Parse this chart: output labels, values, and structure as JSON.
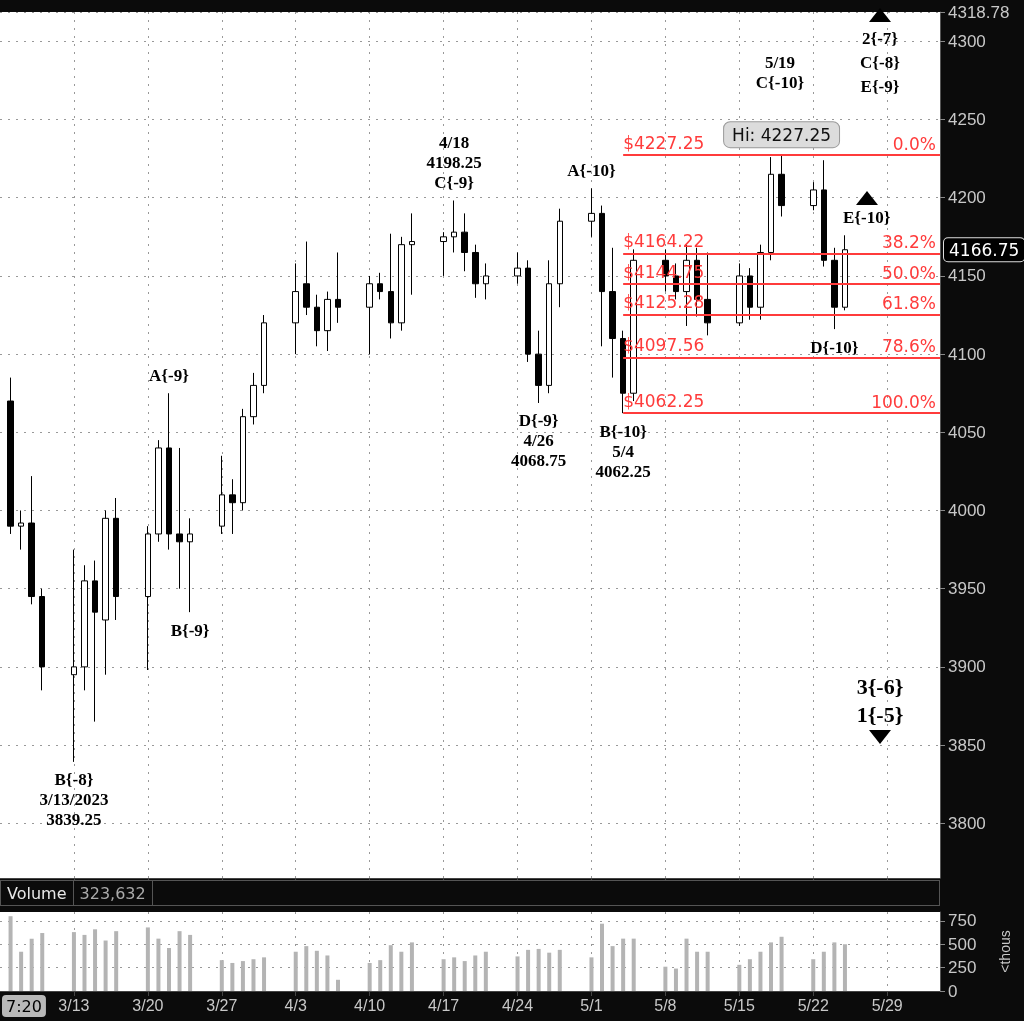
{
  "chart_data": [
    {
      "type": "candlestick",
      "color": "#000000",
      "x": [
        "--03-07",
        "--03-08",
        "--03-09",
        "--03-10",
        "--03-13",
        "--03-14",
        "--03-15",
        "--03-16",
        "--03-17",
        "--03-20",
        "--03-21",
        "--03-22",
        "--03-23",
        "--03-24",
        "--03-27",
        "--03-28",
        "--03-29",
        "--03-30",
        "--03-31",
        "--04-03",
        "--04-04",
        "--04-05",
        "--04-06",
        "--04-07",
        "--04-10",
        "--04-11",
        "--04-12",
        "--04-13",
        "--04-14",
        "--04-17",
        "--04-18",
        "--04-19",
        "--04-20",
        "--04-21",
        "--04-24",
        "--04-25",
        "--04-26",
        "--04-27",
        "--04-28",
        "--05-01",
        "--05-02",
        "--05-03",
        "--05-04",
        "--05-05",
        "--05-08",
        "--05-09",
        "--05-10",
        "--05-11",
        "--05-12",
        "--05-15",
        "--05-16",
        "--05-17",
        "--05-18",
        "--05-19",
        "--05-22",
        "--05-23",
        "--05-24",
        "--05-25"
      ],
      "ohlc": [
        [
          4070,
          4085,
          3985,
          3990
        ],
        [
          3990,
          4000,
          3975,
          3992
        ],
        [
          3992,
          4022,
          3940,
          3945
        ],
        [
          3945,
          3950,
          3885,
          3900
        ],
        [
          3895,
          3975,
          3839.25,
          3900
        ],
        [
          3900,
          3965,
          3885,
          3955
        ],
        [
          3955,
          3968,
          3865,
          3935
        ],
        [
          3930,
          4000,
          3895,
          3995
        ],
        [
          3995,
          4008,
          3930,
          3945
        ],
        [
          3945,
          3990,
          3898,
          3985
        ],
        [
          3985,
          4045,
          3980,
          4040
        ],
        [
          4040,
          4075,
          3975,
          3985
        ],
        [
          3985,
          4040,
          3950,
          3980
        ],
        [
          3980,
          3995,
          3935,
          3985
        ],
        [
          3990,
          4035,
          3985,
          4010
        ],
        [
          4010,
          4020,
          3985,
          4005
        ],
        [
          4005,
          4065,
          4000,
          4060
        ],
        [
          4060,
          4088,
          4055,
          4080
        ],
        [
          4080,
          4125,
          4075,
          4120
        ],
        [
          4120,
          4158,
          4100,
          4140
        ],
        [
          4145,
          4172,
          4125,
          4130
        ],
        [
          4130,
          4138,
          4105,
          4115
        ],
        [
          4115,
          4140,
          4102,
          4135
        ],
        [
          4135,
          4165,
          4120,
          4130
        ],
        [
          4130,
          4150,
          4100,
          4145
        ],
        [
          4145,
          4152,
          4135,
          4140
        ],
        [
          4140,
          4177,
          4110,
          4120
        ],
        [
          4120,
          4175,
          4115,
          4170
        ],
        [
          4170,
          4190,
          4138,
          4172
        ],
        [
          4172,
          4178,
          4150,
          4175
        ],
        [
          4175,
          4198.25,
          4165,
          4178
        ],
        [
          4178,
          4190,
          4153,
          4165
        ],
        [
          4165,
          4170,
          4136,
          4145
        ],
        [
          4145,
          4158,
          4135,
          4150
        ],
        [
          4150,
          4165,
          4145,
          4155
        ],
        [
          4155,
          4160,
          4095,
          4100
        ],
        [
          4100,
          4115,
          4068.75,
          4080
        ],
        [
          4080,
          4160,
          4075,
          4145
        ],
        [
          4145,
          4193,
          4130,
          4185
        ],
        [
          4185,
          4206,
          4175,
          4190
        ],
        [
          4190,
          4195,
          4105,
          4140
        ],
        [
          4140,
          4168,
          4085,
          4110
        ],
        [
          4110,
          4115,
          4062.25,
          4075
        ],
        [
          4075,
          4167,
          4070,
          4160
        ],
        [
          4160,
          4167,
          4140,
          4150
        ],
        [
          4150,
          4158,
          4135,
          4140
        ],
        [
          4140,
          4170,
          4118,
          4160
        ],
        [
          4160,
          4168,
          4124,
          4135
        ],
        [
          4135,
          4165,
          4112,
          4120
        ],
        [
          4120,
          4158,
          4118,
          4150
        ],
        [
          4150,
          4155,
          4122,
          4130
        ],
        [
          4130,
          4170,
          4122,
          4165
        ],
        [
          4165,
          4226,
          4160,
          4215
        ],
        [
          4215,
          4227.25,
          4188,
          4195
        ],
        [
          4195,
          4210,
          4192,
          4205
        ],
        [
          4205,
          4224,
          4156,
          4160
        ],
        [
          4160,
          4168,
          4116,
          4130
        ],
        [
          4130,
          4176,
          4128,
          4166.75
        ]
      ],
      "xlim": [
        "--03-06",
        "--06-03"
      ],
      "xticks": [
        {
          "value": "--03-13",
          "label": null
        },
        {
          "value": "--03-20",
          "label": null
        },
        {
          "value": "--03-27",
          "label": null
        },
        {
          "value": "--04-03",
          "label": null
        },
        {
          "value": "--04-10",
          "label": null
        },
        {
          "value": "--04-17",
          "label": null
        },
        {
          "value": "--04-24",
          "label": null
        },
        {
          "value": "--05-01",
          "label": null
        },
        {
          "value": "--05-08",
          "label": null
        },
        {
          "value": "--05-15",
          "label": null
        },
        {
          "value": "--05-22",
          "label": null
        },
        {
          "value": "--05-29",
          "label": null
        }
      ],
      "ylim": [
        3765,
        4318.78
      ],
      "yticks": [
        3800,
        3850,
        3900,
        3950,
        4000,
        4050,
        4100,
        4150,
        4200,
        4250,
        4300,
        4318.78
      ],
      "grid": true,
      "tick_labels": "y",
      "ref_lines": [
        {
          "axis": "y",
          "value": 4227.25,
          "label": "$4227.25",
          "color": "#ff3b3b"
        },
        {
          "axis": "y",
          "value": 4164.22,
          "label": "$4164.22",
          "color": "#ff3b3b"
        },
        {
          "axis": "y",
          "value": 4144.75,
          "label": "$4144.75",
          "color": "#ff3b3b"
        },
        {
          "axis": "y",
          "value": 4125.28,
          "label": "$4125.28",
          "color": "#ff3b3b"
        },
        {
          "axis": "y",
          "value": 4097.56,
          "label": "$4097.56",
          "color": "#ff3b3b"
        },
        {
          "axis": "y",
          "value": 4062.25,
          "label": "$4062.25",
          "color": "#ff3b3b"
        }
      ],
      "annotations": [
        {
          "text": "B{-8}\n3/13/2023\n3839.25",
          "x": "--03-13",
          "y": 3839.25
        },
        {
          "text": "A{-9}",
          "x": "--03-22",
          "y": 4075
        },
        {
          "text": "B{-9}",
          "x": "--03-24",
          "y": 3935
        },
        {
          "text": "4/18\n4198.25\nC{-9}",
          "x": "--04-18",
          "y": 4198.25
        },
        {
          "text": "D{-9}\n4/26\n4068.75",
          "x": "--04-26",
          "y": 4068.75
        },
        {
          "text": "A{-10}",
          "x": "--05-01",
          "y": 4206
        },
        {
          "text": "B{-10}\n5/4\n4062.25",
          "x": "--05-04",
          "y": 4062.25
        },
        {
          "text": "Hi: 4227.25",
          "x": "--05-19",
          "y": 4227.25
        },
        {
          "text": "D{-10}",
          "x": "--05-24",
          "y": 4116
        },
        {
          "text": "E{-10}",
          "x": "--05-25",
          "y": 4176
        },
        {
          "text": "0.0%",
          "y": 4227.25
        },
        {
          "text": "38.2%",
          "y": 4164.22
        },
        {
          "text": "50.0%",
          "y": 4144.75
        },
        {
          "text": "61.8%",
          "y": 4125.28
        },
        {
          "text": "78.6%",
          "y": 4097.56
        },
        {
          "text": "100.0%",
          "y": 4062.25
        },
        "5/19\nC{-10}",
        "2{-7}\nC{-8}\nE{-9}",
        "3{-6}\n1{-5}",
        "4166.75"
      ]
    },
    {
      "type": "bar",
      "title": "Volume",
      "subtitle": "323,632",
      "ylabel": "<thous",
      "color": "#b4b4b4",
      "x": [
        "--03-07",
        "--03-08",
        "--03-09",
        "--03-10",
        "--03-13",
        "--03-14",
        "--03-15",
        "--03-16",
        "--03-17",
        "--03-20",
        "--03-21",
        "--03-22",
        "--03-23",
        "--03-24",
        "--03-27",
        "--03-28",
        "--03-29",
        "--03-30",
        "--03-31",
        "--04-03",
        "--04-04",
        "--04-05",
        "--04-06",
        "--04-07",
        "--04-10",
        "--04-11",
        "--04-12",
        "--04-13",
        "--04-14",
        "--04-17",
        "--04-18",
        "--04-19",
        "--04-20",
        "--04-21",
        "--04-24",
        "--04-25",
        "--04-26",
        "--04-27",
        "--04-28",
        "--05-01",
        "--05-02",
        "--05-03",
        "--05-04",
        "--05-05",
        "--05-08",
        "--05-09",
        "--05-10",
        "--05-11",
        "--05-12",
        "--05-15",
        "--05-16",
        "--05-17",
        "--05-18",
        "--05-19",
        "--05-22",
        "--05-23",
        "--05-24",
        "--05-25"
      ],
      "values": [
        800,
        420,
        560,
        620,
        630,
        600,
        660,
        540,
        640,
        680,
        560,
        460,
        640,
        600,
        330,
        300,
        320,
        340,
        360,
        420,
        480,
        430,
        380,
        120,
        300,
        330,
        490,
        420,
        520,
        340,
        360,
        320,
        380,
        420,
        370,
        440,
        450,
        410,
        440,
        360,
        720,
        480,
        560,
        560,
        260,
        240,
        560,
        420,
        420,
        280,
        340,
        420,
        520,
        580,
        340,
        420,
        520,
        500
      ],
      "xlim": [
        "--03-06",
        "--06-03"
      ],
      "xticks": [
        {
          "value": "--03-13",
          "label": "3/13"
        },
        {
          "value": "--03-20",
          "label": "3/20"
        },
        {
          "value": "--03-27",
          "label": "3/27"
        },
        {
          "value": "--04-03",
          "label": "4/3"
        },
        {
          "value": "--04-10",
          "label": "4/10"
        },
        {
          "value": "--04-17",
          "label": "4/17"
        },
        {
          "value": "--04-24",
          "label": "4/24"
        },
        {
          "value": "--05-01",
          "label": "5/1"
        },
        {
          "value": "--05-08",
          "label": "5/8"
        },
        {
          "value": "--05-15",
          "label": "5/15"
        },
        {
          "value": "--05-22",
          "label": "5/22"
        },
        {
          "value": "--05-29",
          "label": "5/29"
        }
      ],
      "ylim": [
        0,
        845
      ],
      "yticks": [
        0,
        250,
        500,
        750
      ],
      "grid": true,
      "annotations": [
        "7:20"
      ]
    }
  ]
}
